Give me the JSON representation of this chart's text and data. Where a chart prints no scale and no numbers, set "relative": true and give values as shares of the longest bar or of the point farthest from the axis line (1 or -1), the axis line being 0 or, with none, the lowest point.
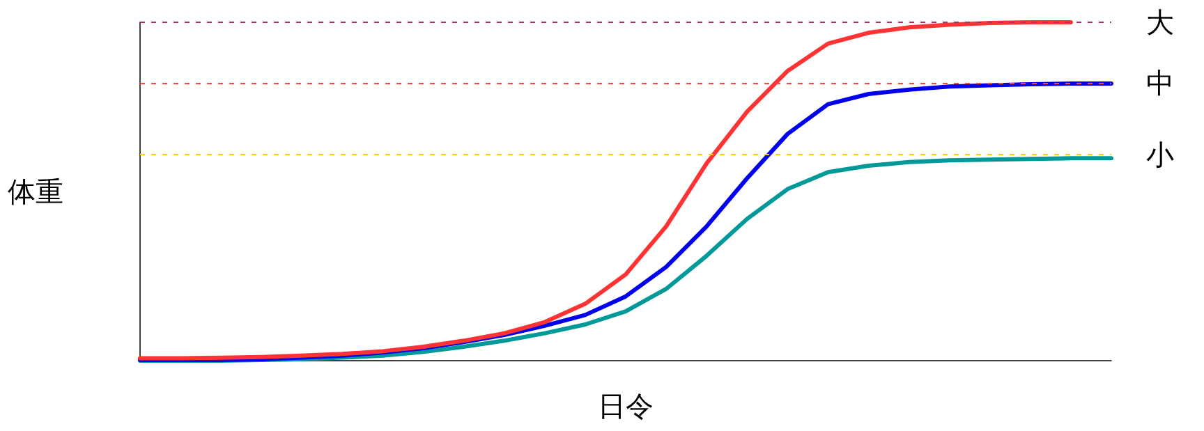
{
  "chart_data": {
    "type": "line",
    "relative": true,
    "xlabel": "日令",
    "ylabel": "体重",
    "categories": [
      null,
      null,
      null,
      null,
      null,
      null,
      null,
      null,
      null,
      null,
      null,
      null,
      null,
      null,
      null,
      null,
      null,
      null,
      null,
      null,
      null,
      null,
      null,
      null,
      null
    ],
    "series": [
      {
        "color": "#009999",
        "values": [
          0,
          0,
          0,
          0.002,
          0.004,
          0.009,
          0.015,
          0.026,
          0.041,
          0.059,
          0.081,
          0.107,
          0.146,
          0.212,
          0.31,
          0.419,
          0.507,
          0.557,
          0.576,
          0.587,
          0.592,
          0.594,
          0.596,
          0.598,
          0.598
        ]
      },
      {
        "color": "#0000ee",
        "values": [
          0.002,
          0.002,
          0.002,
          0.004,
          0.009,
          0.015,
          0.024,
          0.037,
          0.055,
          0.076,
          0.103,
          0.135,
          0.19,
          0.277,
          0.397,
          0.539,
          0.67,
          0.758,
          0.788,
          0.801,
          0.81,
          0.814,
          0.817,
          0.819,
          0.819
        ]
      },
      {
        "color": "#ff3333",
        "values": [
          0.007,
          0.007,
          0.009,
          0.011,
          0.015,
          0.02,
          0.028,
          0.041,
          0.059,
          0.081,
          0.114,
          0.168,
          0.255,
          0.397,
          0.583,
          0.736,
          0.856,
          0.937,
          0.969,
          0.985,
          0.993,
          0.998,
          1,
          1,
          null
        ]
      }
    ],
    "ref_lines": [
      {
        "axis": "y",
        "value": 1,
        "label": "大",
        "color": "#b03060",
        "line_style": "dashed"
      },
      {
        "axis": "y",
        "value": 0.819,
        "label": "中",
        "color": "#ff4444",
        "line_style": "dashed"
      },
      {
        "axis": "y",
        "value": 0.61,
        "label": "小",
        "color": "#ffcc00",
        "line_style": "dashed"
      }
    ],
    "grid": false,
    "marker": "none",
    "line_style": "solid"
  }
}
